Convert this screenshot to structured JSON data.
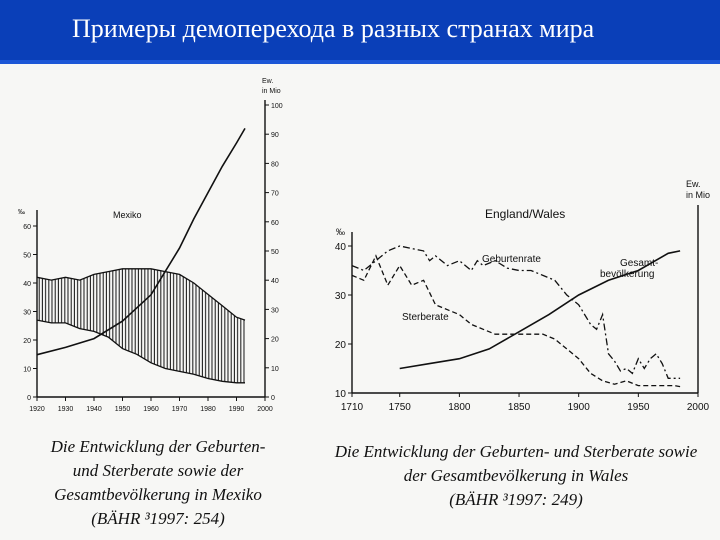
{
  "header": {
    "title": "Примеры демоперехода в разных странах мира"
  },
  "captions": {
    "mexico": [
      "Die Entwicklung der Geburten-",
      "und Sterberate sowie der",
      "Gesamtbevölkerung in Mexiko",
      "(BÄHR ³1997: 254)"
    ],
    "wales": [
      "Die Entwicklung der Geburten- und Sterberate sowie",
      "der Gesamtbevölkerung in Wales",
      "(BÄHR ³1997: 249)"
    ]
  },
  "chart_data": [
    {
      "type": "line",
      "title": "Mexiko",
      "ylabel_left": "‰",
      "ylabel_right": "Ew. in Mio",
      "x_ticks": [
        1920,
        1930,
        1940,
        1950,
        1960,
        1970,
        1980,
        1990,
        2000
      ],
      "left_ticks": [
        0,
        10,
        20,
        30,
        40,
        50,
        60
      ],
      "right_ticks": [
        0,
        10,
        20,
        30,
        40,
        50,
        60,
        70,
        80,
        90,
        100
      ],
      "xlim": [
        1920,
        2000
      ],
      "left_ylim": [
        0,
        65
      ],
      "right_ylim": [
        0,
        100
      ],
      "band_fill": "vertical hatching between birth and death rates",
      "series": [
        {
          "axis": "right",
          "x": [
            1920,
            1930,
            1940,
            1950,
            1960,
            1970,
            1975,
            1980,
            1985,
            1990,
            1993
          ],
          "values": [
            14.5,
            17,
            20,
            26,
            35,
            51,
            61,
            70,
            79,
            87,
            92
          ]
        },
        {
          "axis": "left",
          "x": [
            1920,
            1925,
            1930,
            1935,
            1940,
            1945,
            1950,
            1955,
            1960,
            1965,
            1970,
            1975,
            1980,
            1985,
            1990,
            1993
          ],
          "values": [
            42,
            41,
            42,
            41,
            43,
            44,
            45,
            45,
            45,
            44,
            43,
            40,
            36,
            32,
            28,
            27
          ]
        },
        {
          "axis": "left",
          "x": [
            1920,
            1925,
            1930,
            1935,
            1940,
            1945,
            1950,
            1955,
            1960,
            1965,
            1970,
            1975,
            1980,
            1985,
            1990,
            1993
          ],
          "values": [
            27,
            26,
            26,
            24,
            23,
            21,
            17,
            15,
            12,
            10,
            9,
            8,
            6.5,
            5.5,
            5,
            5
          ]
        }
      ]
    },
    {
      "type": "line",
      "title": "England/Wales",
      "ylabel_left": "‰",
      "ylabel_right": "Ew. in Mio",
      "x_ticks": [
        1710,
        1750,
        1800,
        1850,
        1900,
        1950,
        2000
      ],
      "left_ticks": [
        10,
        20,
        30,
        40
      ],
      "right_ticks": [],
      "xlim": [
        1710,
        2000
      ],
      "left_ylim": [
        10,
        45
      ],
      "annotations": [
        "Geburtenrate",
        "Gesamt-",
        "bevölkerung",
        "Sterberate"
      ],
      "series": [
        {
          "name": "Geburtenrate",
          "style": "dash-dot",
          "x": [
            1710,
            1720,
            1730,
            1740,
            1750,
            1760,
            1770,
            1775,
            1780,
            1790,
            1800,
            1810,
            1815,
            1820,
            1830,
            1840,
            1850,
            1860,
            1870,
            1880,
            1890,
            1900,
            1910,
            1915,
            1920,
            1925,
            1930,
            1935,
            1940,
            1945,
            1950,
            1955,
            1960,
            1965,
            1970,
            1975,
            1980,
            1985
          ],
          "values": [
            36,
            35,
            37,
            39,
            40,
            39.5,
            39,
            37,
            38,
            36,
            37,
            35,
            37,
            36,
            37,
            35.5,
            35,
            35,
            34,
            33,
            30,
            28,
            24,
            23,
            26,
            18,
            16.5,
            14.5,
            15,
            14,
            17,
            15,
            17,
            18,
            16,
            13,
            13,
            13
          ]
        },
        {
          "name": "Sterberate",
          "style": "dashed",
          "x": [
            1710,
            1720,
            1730,
            1740,
            1750,
            1760,
            1770,
            1780,
            1790,
            1800,
            1810,
            1820,
            1830,
            1840,
            1850,
            1860,
            1870,
            1880,
            1890,
            1900,
            1910,
            1920,
            1930,
            1940,
            1950,
            1960,
            1970,
            1980,
            1985
          ],
          "values": [
            34,
            33,
            38,
            32,
            36,
            32,
            33,
            28,
            27,
            26,
            24,
            23,
            22,
            22,
            22,
            22,
            22,
            21,
            19,
            17,
            14,
            12.5,
            11.8,
            12.5,
            11.5,
            11.5,
            11.5,
            11.5,
            11.3
          ]
        },
        {
          "name": "Gesamtbevölkerung",
          "style": "solid",
          "x": [
            1750,
            1775,
            1800,
            1825,
            1850,
            1875,
            1900,
            1925,
            1950,
            1975,
            1985
          ],
          "values": [
            15,
            16,
            17,
            19,
            22.5,
            26,
            30,
            33,
            35,
            38.5,
            39
          ]
        }
      ]
    }
  ]
}
